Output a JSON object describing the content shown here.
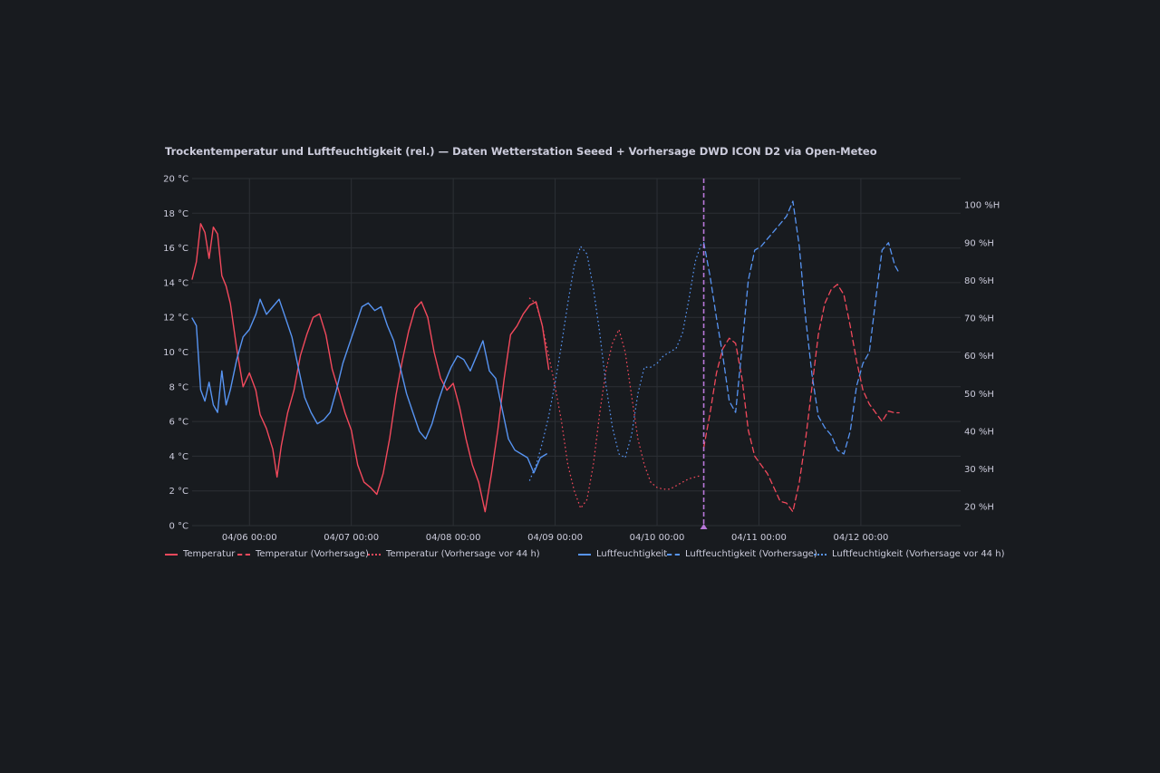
{
  "panel": {
    "title": "Trockentemperatur und Luftfeuchtigkeit (rel.) — Daten Wetterstation Seeed + Vorhersage DWD ICON D2 via Open-Meteo"
  },
  "colors": {
    "background": "#181b1f",
    "grid": "#2c3035",
    "text": "#ccccdc",
    "temperature": "#f2495c",
    "humidity": "#5794f2",
    "now_marker": "#b877d9"
  },
  "chart_data": {
    "type": "line",
    "title": "Trockentemperatur und Luftfeuchtigkeit (rel.) — Daten Wetterstation Seeed + Vorhersage DWD ICON D2 via Open-Meteo",
    "x_range_hours": [
      -13.5,
      167.5
    ],
    "x_ticks": [
      {
        "hour": 0,
        "label": "04/06 00:00"
      },
      {
        "hour": 24,
        "label": "04/07 00:00"
      },
      {
        "hour": 48,
        "label": "04/08 00:00"
      },
      {
        "hour": 72,
        "label": "04/09 00:00"
      },
      {
        "hour": 96,
        "label": "04/10 00:00"
      },
      {
        "hour": 120,
        "label": "04/11 00:00"
      },
      {
        "hour": 144,
        "label": "04/12 00:00"
      }
    ],
    "y_left": {
      "unit": "°C",
      "range": [
        0,
        20
      ],
      "ticks": [
        "0 °C",
        "2 °C",
        "4 °C",
        "6 °C",
        "8 °C",
        "10 °C",
        "12 °C",
        "14 °C",
        "16 °C",
        "18 °C",
        "20 °C"
      ]
    },
    "y_right": {
      "unit": "%H",
      "range": [
        15,
        107
      ],
      "ticks": [
        "20 %H",
        "30 %H",
        "40 %H",
        "50 %H",
        "60 %H",
        "70 %H",
        "80 %H",
        "90 %H",
        "100 %H"
      ]
    },
    "now_hour": 107,
    "grid": true,
    "legend_position": "bottom",
    "series": [
      {
        "name": "Temperatur",
        "axis": "left",
        "style": "solid",
        "color": "#f2495c",
        "points": [
          [
            -13.5,
            14.2
          ],
          [
            -12.5,
            15.2
          ],
          [
            -11.5,
            17.4
          ],
          [
            -10.5,
            16.9
          ],
          [
            -9.5,
            15.4
          ],
          [
            -8.5,
            17.2
          ],
          [
            -7.5,
            16.8
          ],
          [
            -6.5,
            14.4
          ],
          [
            -5.5,
            13.8
          ],
          [
            -4.5,
            12.8
          ],
          [
            -3,
            10.2
          ],
          [
            -1.5,
            8.0
          ],
          [
            0,
            8.8
          ],
          [
            1.5,
            7.8
          ],
          [
            2.5,
            6.4
          ],
          [
            4,
            5.6
          ],
          [
            5.5,
            4.4
          ],
          [
            6.5,
            2.8
          ],
          [
            7.5,
            4.6
          ],
          [
            9,
            6.5
          ],
          [
            10.5,
            7.8
          ],
          [
            12,
            9.8
          ],
          [
            13.5,
            11.0
          ],
          [
            15,
            12.0
          ],
          [
            16.5,
            12.2
          ],
          [
            18,
            11.0
          ],
          [
            19.5,
            9.0
          ],
          [
            21,
            7.8
          ],
          [
            22.5,
            6.5
          ],
          [
            24,
            5.5
          ],
          [
            25.5,
            3.5
          ],
          [
            27,
            2.5
          ],
          [
            28.5,
            2.2
          ],
          [
            30,
            1.8
          ],
          [
            31.5,
            3.0
          ],
          [
            33,
            5.0
          ],
          [
            34.5,
            7.5
          ],
          [
            36,
            9.5
          ],
          [
            37.5,
            11.2
          ],
          [
            39,
            12.5
          ],
          [
            40.5,
            12.9
          ],
          [
            42,
            12.0
          ],
          [
            43.5,
            10.0
          ],
          [
            45,
            8.5
          ],
          [
            46.5,
            7.8
          ],
          [
            48,
            8.2
          ],
          [
            49.5,
            6.8
          ],
          [
            51,
            5.0
          ],
          [
            52.5,
            3.5
          ],
          [
            54,
            2.5
          ],
          [
            55.5,
            0.8
          ],
          [
            57,
            3.0
          ],
          [
            58.5,
            5.5
          ],
          [
            60,
            8.5
          ],
          [
            61.5,
            11.0
          ],
          [
            63,
            11.5
          ],
          [
            64.5,
            12.2
          ],
          [
            66,
            12.7
          ],
          [
            67.5,
            12.9
          ],
          [
            69,
            11.5
          ],
          [
            70.5,
            9.0
          ]
        ]
      },
      {
        "name": "Temperatur (Vorhersage)",
        "axis": "left",
        "style": "dashed",
        "color": "#f2495c",
        "points": [
          [
            107,
            4.5
          ],
          [
            108.5,
            6.5
          ],
          [
            110,
            8.8
          ],
          [
            111.5,
            10.2
          ],
          [
            113,
            10.8
          ],
          [
            114.5,
            10.5
          ],
          [
            116,
            8.5
          ],
          [
            117.5,
            5.5
          ],
          [
            119,
            4.0
          ],
          [
            120.5,
            3.5
          ],
          [
            122,
            3.0
          ],
          [
            123.5,
            2.2
          ],
          [
            125,
            1.4
          ],
          [
            126.5,
            1.3
          ],
          [
            128,
            0.8
          ],
          [
            129.5,
            2.5
          ],
          [
            131,
            5.0
          ],
          [
            132.5,
            8.0
          ],
          [
            134,
            11.0
          ],
          [
            135.5,
            12.8
          ],
          [
            137,
            13.6
          ],
          [
            138.5,
            13.9
          ],
          [
            140,
            13.3
          ],
          [
            141.5,
            11.5
          ],
          [
            143,
            9.5
          ],
          [
            144.5,
            7.8
          ],
          [
            146,
            7.0
          ],
          [
            147.5,
            6.5
          ],
          [
            149,
            6.0
          ],
          [
            150.5,
            6.6
          ],
          [
            152,
            6.5
          ],
          [
            153,
            6.5
          ]
        ]
      },
      {
        "name": "Temperatur (Vorhersage vor 44 h)",
        "axis": "left",
        "style": "dotted",
        "color": "#f2495c",
        "points": [
          [
            66,
            13.1
          ],
          [
            67.5,
            12.8
          ],
          [
            69,
            11.5
          ],
          [
            70.5,
            9.8
          ],
          [
            72,
            8.0
          ],
          [
            73.5,
            6.0
          ],
          [
            75,
            3.5
          ],
          [
            76.5,
            2.0
          ],
          [
            78,
            1.0
          ],
          [
            79.5,
            1.5
          ],
          [
            81,
            3.5
          ],
          [
            82.5,
            6.5
          ],
          [
            84,
            9.0
          ],
          [
            85.5,
            10.5
          ],
          [
            87,
            11.3
          ],
          [
            88.5,
            10.0
          ],
          [
            90,
            7.5
          ],
          [
            91.5,
            5.0
          ],
          [
            93,
            3.5
          ],
          [
            94.5,
            2.5
          ],
          [
            96,
            2.2
          ],
          [
            97.5,
            2.1
          ],
          [
            99,
            2.1
          ],
          [
            100.5,
            2.3
          ],
          [
            102,
            2.5
          ],
          [
            103.5,
            2.7
          ],
          [
            105,
            2.8
          ],
          [
            106.5,
            2.9
          ]
        ]
      },
      {
        "name": "Luftfeuchtigkeit",
        "axis": "right",
        "style": "solid",
        "color": "#5794f2",
        "points": [
          [
            -13.5,
            70.0
          ],
          [
            -12.5,
            68.0
          ],
          [
            -11.5,
            51.0
          ],
          [
            -10.5,
            48.0
          ],
          [
            -9.5,
            53.0
          ],
          [
            -8.5,
            47.0
          ],
          [
            -7.5,
            45.0
          ],
          [
            -6.5,
            56.0
          ],
          [
            -5.5,
            47.0
          ],
          [
            -4.5,
            51.0
          ],
          [
            -3,
            59.0
          ],
          [
            -1.5,
            65.0
          ],
          [
            0,
            67.0
          ],
          [
            1.5,
            71.0
          ],
          [
            2.5,
            75.0
          ],
          [
            4,
            71.0
          ],
          [
            5.5,
            73.0
          ],
          [
            7,
            75.0
          ],
          [
            8.5,
            70.0
          ],
          [
            10,
            65.0
          ],
          [
            11.5,
            57.0
          ],
          [
            13,
            49.0
          ],
          [
            14.5,
            45.0
          ],
          [
            16,
            42.0
          ],
          [
            17.5,
            43.0
          ],
          [
            19,
            45.0
          ],
          [
            20.5,
            51.0
          ],
          [
            22,
            58.0
          ],
          [
            23.5,
            63.0
          ],
          [
            25,
            68.0
          ],
          [
            26.5,
            73.0
          ],
          [
            28,
            74.0
          ],
          [
            29.5,
            72.0
          ],
          [
            31,
            73.0
          ],
          [
            32.5,
            68.0
          ],
          [
            34,
            64.0
          ],
          [
            35.5,
            57.0
          ],
          [
            37,
            50.0
          ],
          [
            38.5,
            45.0
          ],
          [
            40,
            40.0
          ],
          [
            41.5,
            38.0
          ],
          [
            43,
            42.0
          ],
          [
            44.5,
            48.0
          ],
          [
            46,
            53.0
          ],
          [
            47.5,
            57.0
          ],
          [
            49,
            60.0
          ],
          [
            50.5,
            59.0
          ],
          [
            52,
            56.0
          ],
          [
            53.5,
            60.0
          ],
          [
            55,
            64.0
          ],
          [
            56.5,
            56.0
          ],
          [
            58,
            54.0
          ],
          [
            59.5,
            46.0
          ],
          [
            61,
            38.0
          ],
          [
            62.5,
            35.0
          ],
          [
            64,
            34.0
          ],
          [
            65.5,
            33.0
          ],
          [
            67,
            29.0
          ],
          [
            68.5,
            33.0
          ],
          [
            70,
            34.0
          ]
        ]
      },
      {
        "name": "Luftfeuchtigkeit (Vorhersage)",
        "axis": "right",
        "style": "dashed",
        "color": "#5794f2",
        "points": [
          [
            107,
            90.0
          ],
          [
            108.5,
            81.0
          ],
          [
            110,
            70.0
          ],
          [
            111.5,
            60.0
          ],
          [
            113,
            48.0
          ],
          [
            114.5,
            45.0
          ],
          [
            116,
            62.0
          ],
          [
            117.5,
            80.0
          ],
          [
            119,
            88.0
          ],
          [
            120.5,
            89.0
          ],
          [
            122,
            91.0
          ],
          [
            123.5,
            93.0
          ],
          [
            125,
            95.0
          ],
          [
            126.5,
            97.0
          ],
          [
            128,
            101.0
          ],
          [
            129.5,
            89.0
          ],
          [
            131,
            70.0
          ],
          [
            132.5,
            55.0
          ],
          [
            134,
            44.0
          ],
          [
            135.5,
            41.0
          ],
          [
            137,
            39.0
          ],
          [
            138.5,
            35.0
          ],
          [
            140,
            34.0
          ],
          [
            141.5,
            40.0
          ],
          [
            143,
            52.0
          ],
          [
            144.5,
            58.0
          ],
          [
            146,
            61.0
          ],
          [
            147.5,
            75.0
          ],
          [
            149,
            88.0
          ],
          [
            150.5,
            90.0
          ],
          [
            152,
            84.0
          ],
          [
            153,
            82.0
          ]
        ]
      },
      {
        "name": "Luftfeuchtigkeit (Vorhersage vor 44 h)",
        "axis": "right",
        "style": "dotted",
        "color": "#5794f2",
        "points": [
          [
            66,
            27.0
          ],
          [
            67.5,
            31.0
          ],
          [
            69,
            37.0
          ],
          [
            70.5,
            44.0
          ],
          [
            72,
            53.0
          ],
          [
            73.5,
            63.0
          ],
          [
            75,
            74.0
          ],
          [
            76.5,
            84.0
          ],
          [
            78,
            89.0
          ],
          [
            79.5,
            87.0
          ],
          [
            81,
            78.0
          ],
          [
            82.5,
            66.0
          ],
          [
            84,
            52.0
          ],
          [
            85.5,
            41.0
          ],
          [
            87,
            34.0
          ],
          [
            88.5,
            33.0
          ],
          [
            90,
            39.0
          ],
          [
            91.5,
            50.0
          ],
          [
            93,
            57.0
          ],
          [
            94.5,
            57.0
          ],
          [
            96,
            58.0
          ],
          [
            97.5,
            60.0
          ],
          [
            99,
            61.0
          ],
          [
            100.5,
            62.0
          ],
          [
            102,
            66.0
          ],
          [
            103.5,
            75.0
          ],
          [
            105,
            85.0
          ],
          [
            106.5,
            90.0
          ]
        ]
      }
    ]
  },
  "legend": {
    "items": [
      {
        "label": "Temperatur"
      },
      {
        "label": "Temperatur (Vorhersage)"
      },
      {
        "label": "Temperatur (Vorhersage vor 44 h)"
      },
      {
        "label": "Luftfeuchtigkeit"
      },
      {
        "label": "Luftfeuchtigkeit (Vorhersage)"
      },
      {
        "label": "Luftfeuchtigkeit (Vorhersage vor 44 h)"
      }
    ]
  }
}
